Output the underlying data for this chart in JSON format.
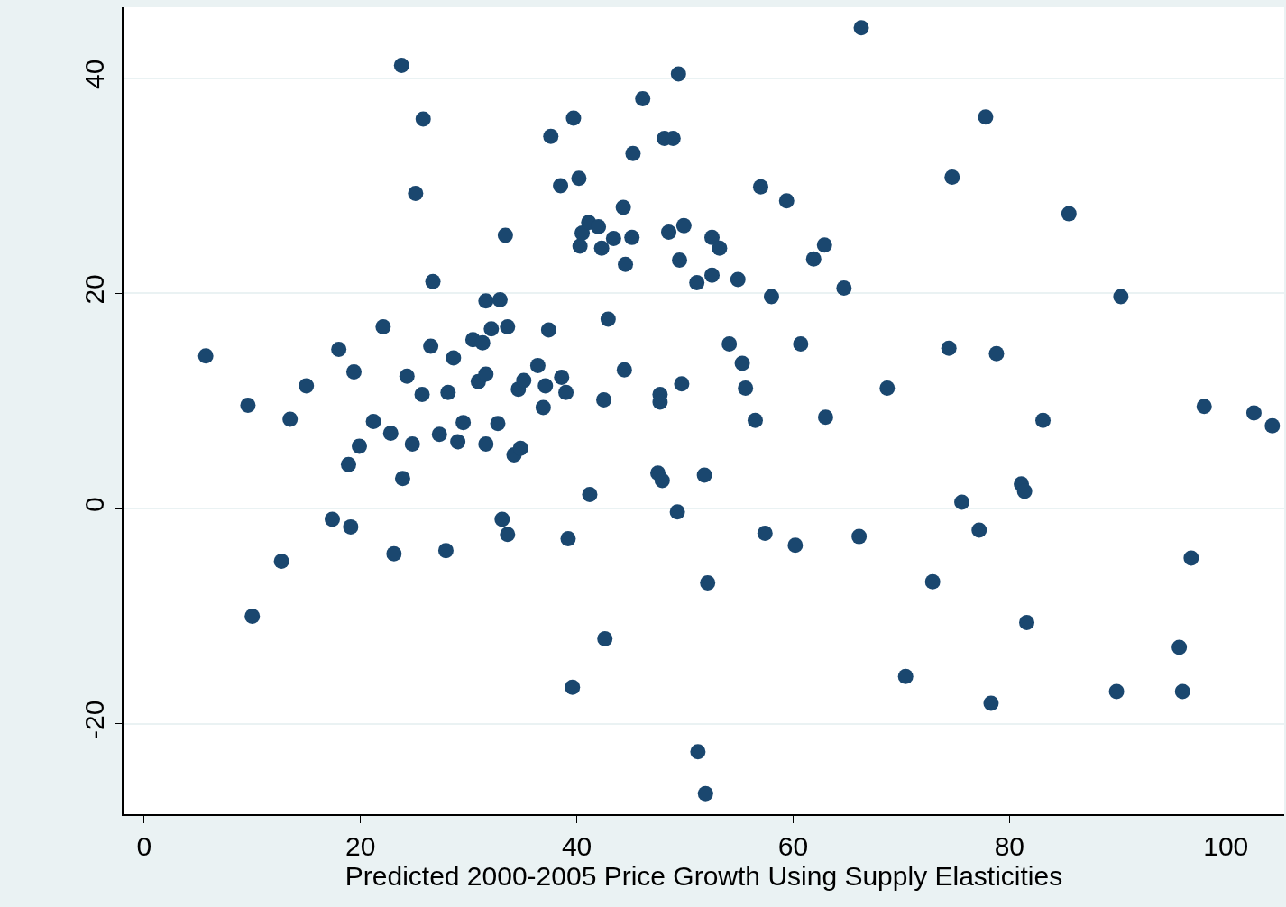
{
  "chart_data": {
    "type": "scatter",
    "xlabel": "Predicted 2000-2005 Price Growth Using Supply Elasticities",
    "x": [
      5.7,
      9.6,
      10.0,
      12.7,
      13.5,
      15.0,
      17.4,
      18.0,
      18.9,
      19.1,
      19.4,
      19.9,
      21.2,
      22.1,
      22.8,
      23.1,
      23.8,
      23.9,
      24.3,
      24.8,
      25.1,
      25.7,
      25.8,
      26.5,
      26.7,
      27.3,
      27.9,
      28.1,
      28.6,
      29.0,
      29.5,
      30.4,
      30.9,
      31.3,
      31.6,
      31.6,
      31.6,
      32.1,
      32.7,
      32.9,
      33.1,
      33.4,
      33.6,
      33.6,
      34.2,
      34.6,
      34.8,
      35.1,
      36.4,
      36.9,
      37.1,
      37.4,
      37.6,
      38.5,
      38.6,
      39.0,
      39.2,
      39.6,
      39.7,
      40.2,
      40.3,
      40.5,
      41.1,
      41.2,
      42.0,
      42.3,
      42.5,
      42.6,
      42.9,
      43.4,
      44.3,
      44.4,
      44.5,
      45.1,
      45.2,
      46.1,
      47.5,
      47.7,
      47.7,
      47.9,
      48.1,
      48.5,
      48.9,
      49.4,
      49.3,
      49.5,
      49.7,
      49.9,
      51.1,
      51.2,
      51.8,
      51.9,
      52.1,
      52.5,
      52.5,
      53.2,
      54.1,
      54.9,
      55.3,
      55.6,
      56.5,
      57.0,
      57.4,
      58.0,
      59.4,
      60.2,
      60.7,
      61.9,
      62.9,
      63.0,
      64.7,
      66.1,
      66.3,
      68.7,
      70.4,
      72.9,
      74.4,
      74.7,
      75.6,
      77.2,
      77.8,
      78.3,
      78.8,
      81.1,
      81.4,
      81.6,
      83.1,
      85.5,
      89.9,
      90.3,
      95.7,
      96.0,
      96.8,
      98.0,
      102.6,
      104.3
    ],
    "values": [
      14.2,
      9.6,
      -10.0,
      -4.9,
      8.3,
      11.4,
      -1.0,
      14.8,
      4.1,
      -1.7,
      12.7,
      5.8,
      8.1,
      16.9,
      7.0,
      -4.2,
      41.2,
      2.8,
      12.3,
      6.0,
      29.3,
      10.6,
      36.2,
      15.1,
      21.1,
      6.9,
      -3.9,
      10.8,
      14.0,
      6.2,
      8.0,
      15.7,
      11.8,
      15.4,
      12.5,
      19.3,
      6.0,
      16.7,
      7.9,
      19.4,
      -1.0,
      25.4,
      16.9,
      -2.4,
      5.0,
      11.1,
      5.6,
      11.9,
      13.3,
      9.4,
      11.4,
      16.6,
      34.6,
      30.0,
      12.2,
      10.8,
      -2.8,
      -16.6,
      36.3,
      30.7,
      24.4,
      25.6,
      26.6,
      1.3,
      26.2,
      24.2,
      10.1,
      -12.1,
      17.6,
      25.1,
      28.0,
      12.9,
      22.7,
      25.2,
      33.0,
      38.1,
      3.3,
      10.6,
      9.9,
      2.6,
      34.4,
      25.7,
      34.4,
      40.4,
      -0.3,
      23.1,
      11.6,
      26.3,
      21.0,
      -22.6,
      3.1,
      -26.5,
      -6.9,
      25.2,
      21.7,
      24.2,
      15.3,
      21.3,
      13.5,
      11.2,
      8.2,
      29.9,
      -2.3,
      19.7,
      28.6,
      -3.4,
      15.3,
      23.2,
      24.5,
      8.5,
      20.5,
      -2.6,
      44.7,
      11.2,
      -15.6,
      -6.8,
      14.9,
      30.8,
      0.6,
      -2.0,
      36.4,
      -18.1,
      14.4,
      2.3,
      1.6,
      -10.6,
      8.2,
      27.4,
      -17.0,
      19.7,
      -12.9,
      -17.0,
      -4.6,
      9.5,
      8.9,
      7.7
    ],
    "color": "#1a476f",
    "marker": "circle",
    "xlim": [
      -1.9,
      105.4
    ],
    "ylim": [
      -28.4,
      46.6
    ],
    "xticks": [
      0,
      20,
      40,
      60,
      80,
      100
    ],
    "yticks": [
      -20,
      0,
      20,
      40
    ],
    "grid": "y",
    "legend": false
  }
}
